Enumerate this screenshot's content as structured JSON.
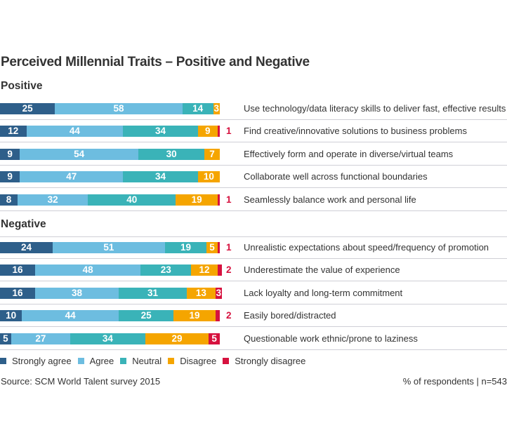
{
  "chart_data": {
    "type": "bar",
    "orientation": "horizontal",
    "stacked": true,
    "title": "Perceived Millennial Traits – Positive and Negative",
    "legend_position": "bottom",
    "series_names": [
      "Strongly agree",
      "Agree",
      "Neutral",
      "Disagree",
      "Strongly disagree"
    ],
    "colors": [
      "#2e5f8a",
      "#6dbde0",
      "#3ab3b8",
      "#f5a500",
      "#d6123f"
    ],
    "groups": [
      {
        "name": "Positive",
        "rows": [
          {
            "label": "Use technology/data literacy skills to deliver fast, effective results",
            "values": [
              25,
              58,
              14,
              3,
              0
            ]
          },
          {
            "label": "Find creative/innovative solutions to business problems",
            "values": [
              12,
              44,
              34,
              9,
              1
            ]
          },
          {
            "label": "Effectively form and operate in diverse/virtual teams",
            "values": [
              9,
              54,
              30,
              7,
              0
            ]
          },
          {
            "label": "Collaborate well across functional boundaries",
            "values": [
              9,
              47,
              34,
              10,
              0
            ]
          },
          {
            "label": "Seamlessly balance work and personal life",
            "values": [
              8,
              32,
              40,
              19,
              1
            ]
          }
        ]
      },
      {
        "name": "Negative",
        "rows": [
          {
            "label": "Unrealistic expectations about speed/frequency of promotion",
            "values": [
              24,
              51,
              19,
              5,
              1
            ]
          },
          {
            "label": "Underestimate the value of experience",
            "values": [
              16,
              48,
              23,
              12,
              2
            ]
          },
          {
            "label": "Lack loyalty and long-term commitment",
            "values": [
              16,
              38,
              31,
              13,
              3
            ]
          },
          {
            "label": "Easily bored/distracted",
            "values": [
              10,
              44,
              25,
              19,
              2
            ]
          },
          {
            "label": "Questionable work ethnic/prone to laziness",
            "values": [
              5,
              27,
              34,
              29,
              5
            ]
          }
        ]
      }
    ],
    "xlim": [
      0,
      100
    ]
  },
  "footer": {
    "source": "Source: SCM World Talent survey 2015",
    "note": "% of respondents | n=543"
  }
}
